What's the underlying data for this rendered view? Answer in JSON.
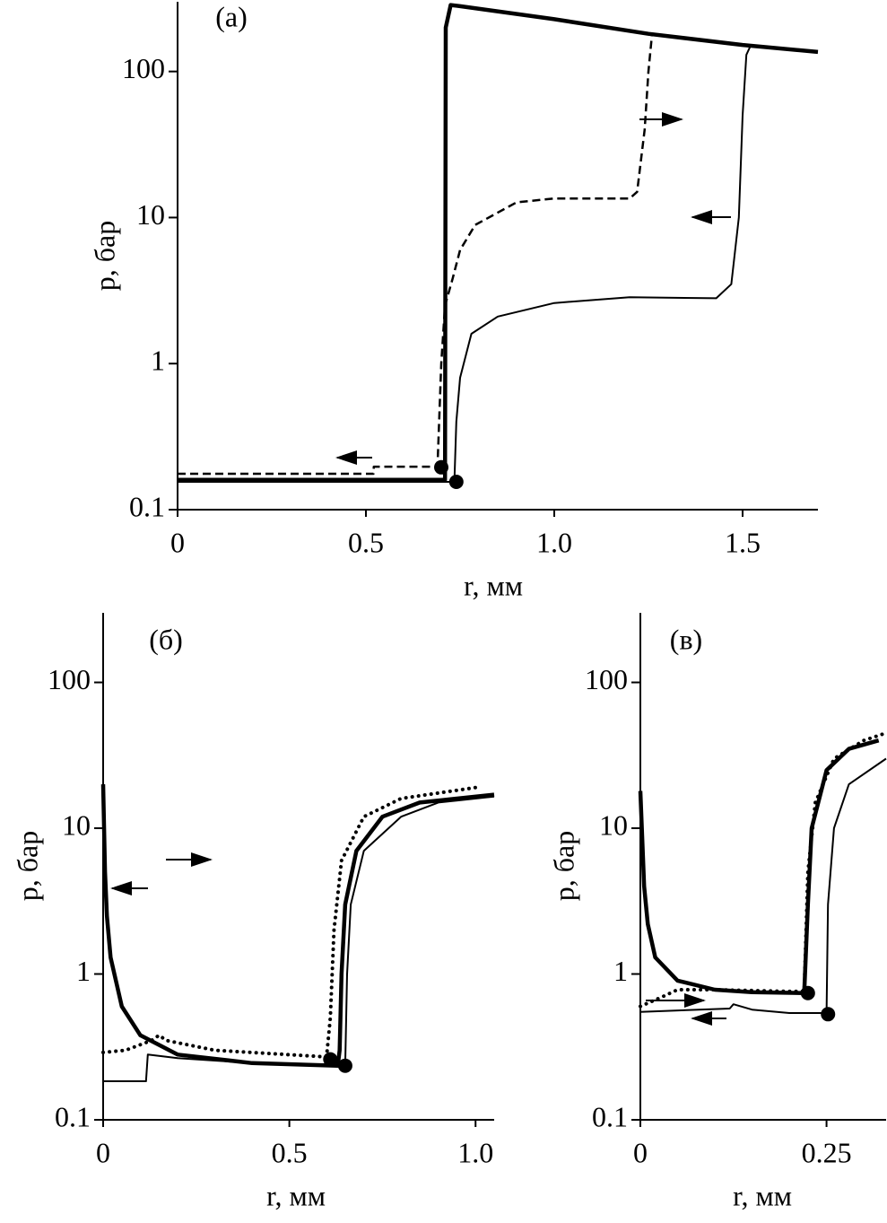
{
  "chart_data": [
    {
      "type": "line",
      "label": "(а)",
      "xlabel": "r, мм",
      "ylabel": "p, бар",
      "log_y": true,
      "xlim": [
        0,
        1.7
      ],
      "ylim": [
        0.1,
        300
      ],
      "xticks": [
        0,
        0.5,
        {
          "value": 1,
          "label": "1.0"
        },
        1.5
      ],
      "yticks": [
        0.1,
        1,
        10,
        100
      ],
      "series": [
        {
          "color": "#000000",
          "style": "thick",
          "x": [
            0,
            0.71,
            0.712,
            0.725,
            0.75,
            1.0,
            1.25,
            1.5,
            1.7
          ],
          "values": [
            0.16,
            0.16,
            200,
            285,
            280,
            228,
            181,
            152,
            136
          ]
        },
        {
          "color": "#000000",
          "style": "dashed",
          "x": [
            0,
            0.52,
            0.521,
            0.69,
            0.7,
            0.71,
            0.73,
            0.75,
            0.79,
            0.9,
            1.0,
            1.2,
            1.22,
            1.24,
            1.25,
            1.26
          ],
          "values": [
            0.176,
            0.176,
            0.197,
            0.197,
            1.0,
            2.5,
            3.8,
            6,
            8.9,
            12.7,
            13.5,
            13.5,
            15,
            40,
            100,
            185
          ]
        },
        {
          "color": "#000000",
          "style": "thin",
          "x": [
            0,
            0.73,
            0.735,
            0.74,
            0.75,
            0.78,
            0.85,
            1.0,
            1.2,
            1.43,
            1.47,
            1.49,
            1.5,
            1.51,
            1.52
          ],
          "values": [
            0.155,
            0.155,
            0.16,
            0.4,
            0.8,
            1.6,
            2.1,
            2.6,
            2.85,
            2.8,
            3.5,
            10,
            50,
            130,
            148
          ]
        }
      ],
      "markers": {
        "color": "#000000",
        "x": [
          0.7,
          0.74
        ],
        "values": [
          0.195,
          0.155
        ]
      }
    },
    {
      "type": "line",
      "label": "(б)",
      "xlabel": "r, мм",
      "ylabel": "p, бар",
      "log_y": true,
      "xlim": [
        0,
        1.05
      ],
      "ylim": [
        0.1,
        300
      ],
      "xticks": [
        0,
        0.5,
        {
          "value": 1,
          "label": "1.0"
        }
      ],
      "yticks": [
        0.1,
        1,
        10,
        100
      ],
      "series": [
        {
          "color": "#000000",
          "style": "thick",
          "x": [
            0,
            0.005,
            0.01,
            0.02,
            0.05,
            0.1,
            0.2,
            0.4,
            0.63,
            0.635,
            0.64,
            0.65,
            0.68,
            0.75,
            0.85,
            1.05
          ],
          "values": [
            20,
            5,
            2.5,
            1.3,
            0.6,
            0.38,
            0.28,
            0.245,
            0.235,
            0.3,
            1,
            3,
            7,
            12,
            15,
            17
          ]
        },
        {
          "color": "#000000",
          "style": "thin",
          "x": [
            0,
            0.115,
            0.12,
            0.2,
            0.4,
            0.65,
            0.655,
            0.665,
            0.7,
            0.8,
            0.9,
            1.05
          ],
          "values": [
            0.184,
            0.184,
            0.28,
            0.265,
            0.245,
            0.235,
            1,
            3,
            7,
            12,
            15,
            16.5
          ]
        },
        {
          "color": "#000000",
          "style": "dotted",
          "x": [
            0,
            0.06,
            0.13,
            0.15,
            0.17,
            0.3,
            0.6,
            0.61,
            0.62,
            0.64,
            0.7,
            0.8,
            1.0
          ],
          "values": [
            0.29,
            0.3,
            0.35,
            0.38,
            0.35,
            0.3,
            0.27,
            0.5,
            2,
            6,
            12,
            16,
            19
          ]
        }
      ],
      "markers": {
        "color": "#000000",
        "x": [
          0.61,
          0.65
        ],
        "values": [
          0.26,
          0.235
        ]
      }
    },
    {
      "type": "line",
      "label": "(в)",
      "xlabel": "r, мм",
      "ylabel": "p, бар",
      "log_y": true,
      "xlim": [
        0,
        0.33
      ],
      "ylim": [
        0.1,
        300
      ],
      "xticks": [
        0,
        0.25
      ],
      "yticks": [
        0.1,
        1,
        10,
        100
      ],
      "series": [
        {
          "color": "#000000",
          "style": "thick",
          "x": [
            0,
            0.005,
            0.01,
            0.02,
            0.05,
            0.1,
            0.15,
            0.22,
            0.225,
            0.23,
            0.25,
            0.28,
            0.32
          ],
          "values": [
            18,
            4,
            2.2,
            1.3,
            0.9,
            0.78,
            0.75,
            0.74,
            3,
            10,
            25,
            35,
            40
          ]
        },
        {
          "color": "#000000",
          "style": "dotted",
          "x": [
            0,
            0.03,
            0.05,
            0.1,
            0.2,
            0.22,
            0.225,
            0.235,
            0.26,
            0.3,
            0.33
          ],
          "values": [
            0.6,
            0.7,
            0.78,
            0.78,
            0.76,
            0.76,
            5,
            15,
            30,
            40,
            45
          ]
        },
        {
          "color": "#000000",
          "style": "thin",
          "x": [
            0,
            0.12,
            0.125,
            0.15,
            0.2,
            0.25,
            0.252,
            0.26,
            0.28,
            0.33
          ],
          "values": [
            0.55,
            0.58,
            0.62,
            0.57,
            0.54,
            0.54,
            3,
            10,
            20,
            30
          ]
        }
      ],
      "markers": {
        "color": "#000000",
        "x": [
          0.225,
          0.252
        ],
        "values": [
          0.74,
          0.53
        ]
      }
    }
  ]
}
